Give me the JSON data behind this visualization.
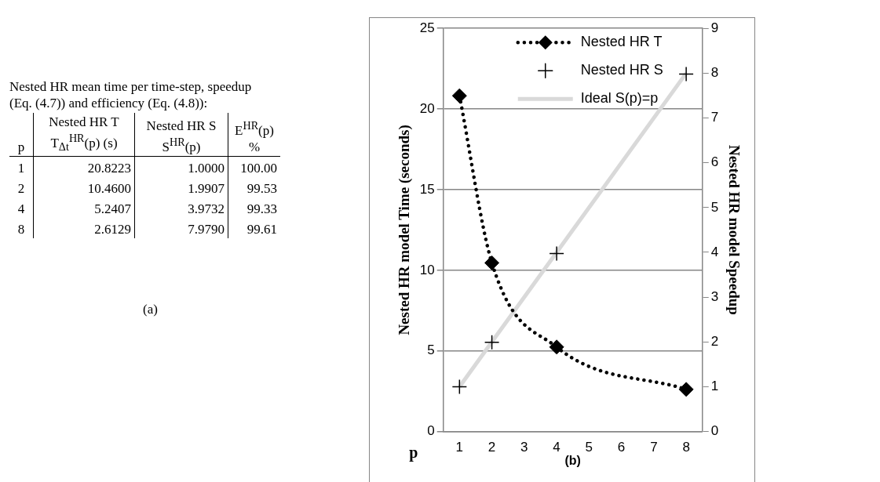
{
  "chart_data": [
    {
      "type": "other",
      "title": "Nested HR mean time per time-step, speedup (Eq. (4.7)) and efficiency (Eq. (4.8)):",
      "annotations": [
        "p",
        "Nested HR T T$_{Δt}$$^{HR}$(p) (s)",
        "Nested HR S S$^{HR}$(p)",
        "E$^{HR}$(p) %",
        "1",
        "20.8223",
        "1.0000",
        "100.00",
        "2",
        "10.4600",
        "1.9907",
        "99.53",
        "4",
        "5.2407",
        "3.9732",
        "99.33",
        "8",
        "2.6129",
        "7.9790",
        "99.61",
        "(a)"
      ]
    },
    {
      "type": "line",
      "xlabel": "p",
      "ylabel": "Nested HR model Time (seconds)",
      "y2label": "Nested HR model Speedup",
      "x": [
        1,
        2,
        4,
        8
      ],
      "series": [
        {
          "name": "Nested HR T",
          "color": "#000000",
          "values": [
            20.8223,
            10.46,
            5.2407,
            2.6129
          ],
          "marker": "diamond",
          "line_style": "dotted"
        },
        {
          "name": "Nested HR S",
          "type": "scatter",
          "color": "#000000",
          "axis": "y2",
          "values": [
            1.0,
            1.9907,
            3.9732,
            7.979
          ],
          "marker": "cross"
        },
        {
          "name": "Ideal S(p)=p",
          "color": "#d9d9d9",
          "axis": "y2",
          "values": [
            1,
            2,
            4,
            8
          ],
          "marker": "none",
          "line_style": "solid"
        }
      ],
      "xlim": [
        0.5,
        8.5
      ],
      "xticks": [
        1,
        2,
        3,
        4,
        5,
        6,
        7,
        8
      ],
      "ylim": [
        0,
        25
      ],
      "yticks": [
        0,
        5,
        10,
        15,
        20,
        25
      ],
      "y2lim": [
        0,
        9
      ],
      "y2ticks": [
        0,
        1,
        2,
        3,
        4,
        5,
        6,
        7,
        8,
        9
      ],
      "grid": "y",
      "legend": "top",
      "annotations": [
        "(b)"
      ]
    }
  ]
}
